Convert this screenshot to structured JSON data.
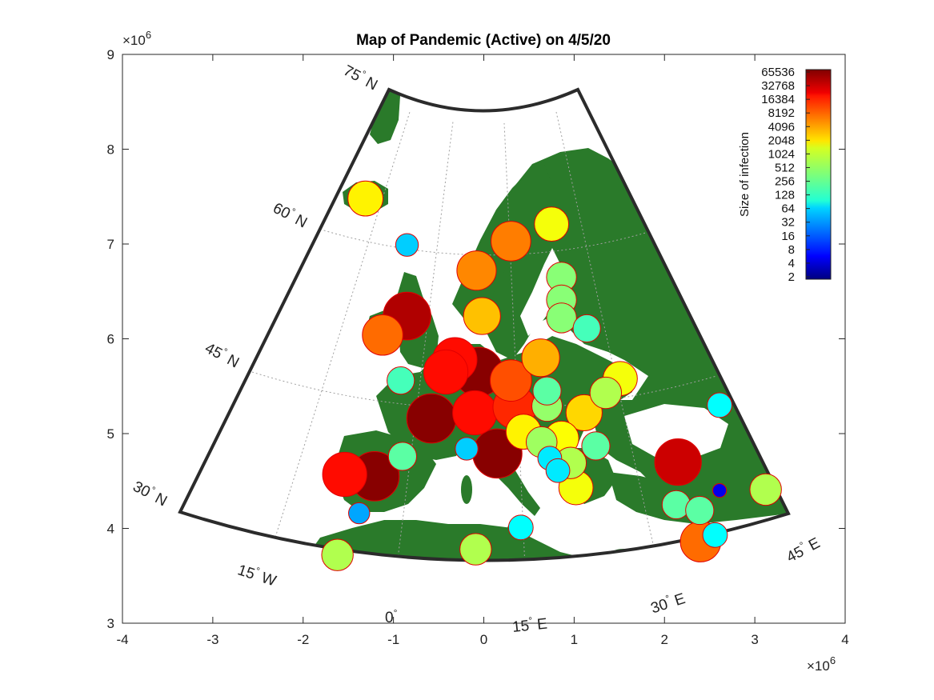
{
  "title": "Map of Pandemic (Active) on 4/5/20",
  "x_axis": {
    "range": [
      -4,
      4
    ],
    "ticks": [
      "-4",
      "-3",
      "-2",
      "-1",
      "0",
      "1",
      "2",
      "3",
      "4"
    ],
    "exponent_base": "×10",
    "exponent_power": "6"
  },
  "y_axis": {
    "range": [
      3,
      9
    ],
    "ticks": [
      "3",
      "4",
      "5",
      "6",
      "7",
      "8",
      "9"
    ],
    "exponent_base": "×10",
    "exponent_power": "6"
  },
  "graticule_labels": {
    "lat": [
      {
        "deg": "75",
        "hemi": "N"
      },
      {
        "deg": "60",
        "hemi": "N"
      },
      {
        "deg": "45",
        "hemi": "N"
      },
      {
        "deg": "30",
        "hemi": "N"
      }
    ],
    "lon": [
      {
        "deg": "15",
        "hemi": "W"
      },
      {
        "deg": "0",
        "hemi": ""
      },
      {
        "deg": "15",
        "hemi": "E"
      },
      {
        "deg": "30",
        "hemi": "E"
      },
      {
        "deg": "45",
        "hemi": "E"
      }
    ],
    "degree_symbol": "°"
  },
  "colorbar": {
    "label": "Size of infection",
    "ticks": [
      "65536",
      "32768",
      "16384",
      "8192",
      "4096",
      "2048",
      "1024",
      "512",
      "256",
      "128",
      "64",
      "32",
      "16",
      "8",
      "4",
      "2"
    ],
    "scale": "log2",
    "range": [
      2,
      65536
    ]
  },
  "colors": {
    "land": "#2a7a2a",
    "ocean": "#ffffff",
    "marker_edge": "#e00000",
    "frame": "#2b2b2b"
  },
  "chart_data": {
    "type": "scatter",
    "x_units": "map x (×10^6)",
    "y_units": "map y (×10^6)",
    "size_and_color_encode": "active cases",
    "points": [
      {
        "x": -1.31,
        "y": 7.48,
        "value": 1500
      },
      {
        "x": -0.85,
        "y": 6.99,
        "value": 60
      },
      {
        "x": 0.3,
        "y": 7.03,
        "value": 5000
      },
      {
        "x": 0.75,
        "y": 7.21,
        "value": 1200
      },
      {
        "x": -0.08,
        "y": 6.72,
        "value": 4500
      },
      {
        "x": 0.86,
        "y": 6.65,
        "value": 400
      },
      {
        "x": 0.86,
        "y": 6.41,
        "value": 400
      },
      {
        "x": 0.86,
        "y": 6.22,
        "value": 400
      },
      {
        "x": -0.85,
        "y": 6.24,
        "value": 40000
      },
      {
        "x": -1.12,
        "y": 6.04,
        "value": 6000
      },
      {
        "x": -0.02,
        "y": 6.24,
        "value": 2500
      },
      {
        "x": 1.14,
        "y": 6.11,
        "value": 200
      },
      {
        "x": -0.92,
        "y": 5.56,
        "value": 200
      },
      {
        "x": 0.63,
        "y": 5.8,
        "value": 3000
      },
      {
        "x": -0.32,
        "y": 5.78,
        "value": 16000
      },
      {
        "x": -0.42,
        "y": 5.65,
        "value": 16000
      },
      {
        "x": -0.06,
        "y": 5.65,
        "value": 60000
      },
      {
        "x": 0.3,
        "y": 5.56,
        "value": 8000
      },
      {
        "x": 1.51,
        "y": 5.58,
        "value": 1200
      },
      {
        "x": 1.35,
        "y": 5.43,
        "value": 600
      },
      {
        "x": 0.7,
        "y": 5.45,
        "value": 250
      },
      {
        "x": 0.7,
        "y": 5.29,
        "value": 450
      },
      {
        "x": 0.34,
        "y": 5.28,
        "value": 12000
      },
      {
        "x": -0.58,
        "y": 5.16,
        "value": 60000
      },
      {
        "x": -0.1,
        "y": 5.22,
        "value": 16000
      },
      {
        "x": 1.11,
        "y": 5.22,
        "value": 2000
      },
      {
        "x": 0.44,
        "y": 5.02,
        "value": 1500
      },
      {
        "x": 0.64,
        "y": 4.91,
        "value": 500
      },
      {
        "x": 0.86,
        "y": 4.95,
        "value": 1300
      },
      {
        "x": -0.9,
        "y": 4.76,
        "value": 250
      },
      {
        "x": -0.19,
        "y": 4.84,
        "value": 60
      },
      {
        "x": 0.15,
        "y": 4.79,
        "value": 60000
      },
      {
        "x": 0.73,
        "y": 4.74,
        "value": 80
      },
      {
        "x": 0.82,
        "y": 4.61,
        "value": 80
      },
      {
        "x": 0.96,
        "y": 4.69,
        "value": 600
      },
      {
        "x": 1.24,
        "y": 4.87,
        "value": 250
      },
      {
        "x": 1.02,
        "y": 4.43,
        "value": 1200
      },
      {
        "x": -1.54,
        "y": 4.57,
        "value": 16000
      },
      {
        "x": -1.21,
        "y": 4.55,
        "value": 60000
      },
      {
        "x": -1.38,
        "y": 4.16,
        "value": 40
      },
      {
        "x": 0.41,
        "y": 4.01,
        "value": 100
      },
      {
        "x": 2.15,
        "y": 4.7,
        "value": 30000
      },
      {
        "x": 2.61,
        "y": 4.4,
        "value": 6
      },
      {
        "x": 2.61,
        "y": 5.3,
        "value": 100
      },
      {
        "x": 2.13,
        "y": 4.25,
        "value": 250
      },
      {
        "x": 2.39,
        "y": 4.19,
        "value": 250
      },
      {
        "x": 3.12,
        "y": 4.41,
        "value": 600
      },
      {
        "x": 2.56,
        "y": 3.93,
        "value": 100
      },
      {
        "x": 2.4,
        "y": 3.86,
        "value": 6000
      },
      {
        "x": -1.62,
        "y": 3.72,
        "value": 600
      },
      {
        "x": -0.09,
        "y": 3.78,
        "value": 600
      }
    ]
  }
}
